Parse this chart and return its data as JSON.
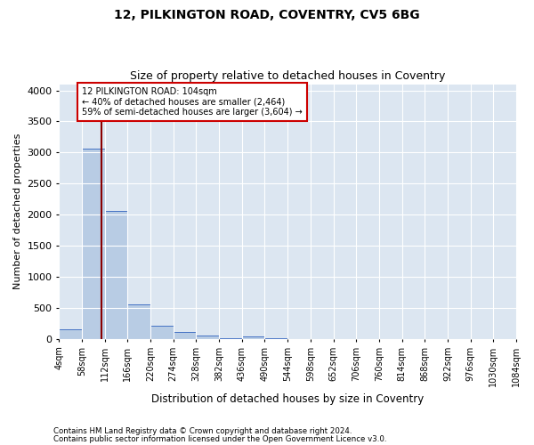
{
  "title1": "12, PILKINGTON ROAD, COVENTRY, CV5 6BG",
  "title2": "Size of property relative to detached houses in Coventry",
  "xlabel": "Distribution of detached houses by size in Coventry",
  "ylabel": "Number of detached properties",
  "footnote1": "Contains HM Land Registry data © Crown copyright and database right 2024.",
  "footnote2": "Contains public sector information licensed under the Open Government Licence v3.0.",
  "annotation_line1": "12 PILKINGTON ROAD: 104sqm",
  "annotation_line2": "← 40% of detached houses are smaller (2,464)",
  "annotation_line3": "59% of semi-detached houses are larger (3,604) →",
  "property_size": 104,
  "bin_edges": [
    4,
    58,
    112,
    166,
    220,
    274,
    328,
    382,
    436,
    490,
    544,
    598,
    652,
    706,
    760,
    814,
    868,
    922,
    976,
    1030,
    1084
  ],
  "bar_heights": [
    150,
    3060,
    2060,
    555,
    215,
    115,
    50,
    10,
    45,
    5,
    0,
    0,
    0,
    0,
    0,
    0,
    0,
    0,
    0,
    0
  ],
  "bar_color": "#b8cce4",
  "bar_edge_color": "#4472c4",
  "vline_color": "#8B0000",
  "annotation_box_edge": "#cc0000",
  "plot_bg_color": "#dce6f1",
  "ylim": [
    0,
    4100
  ],
  "yticks": [
    0,
    500,
    1000,
    1500,
    2000,
    2500,
    3000,
    3500,
    4000
  ]
}
